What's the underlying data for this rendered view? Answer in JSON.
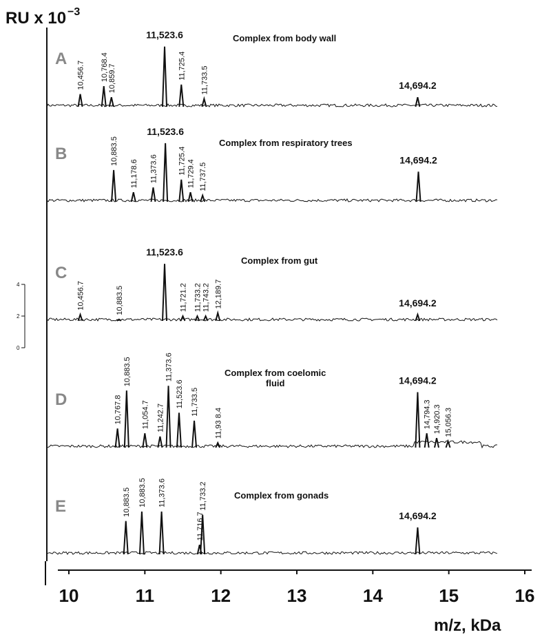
{
  "chart_data": {
    "type": "spectra",
    "y_label": "RU x 10",
    "y_label_exp": "−3",
    "x_label": "m/z, kDa",
    "xlim": [
      10,
      16
    ],
    "xticks": [
      10,
      11,
      12,
      13,
      14,
      15,
      16
    ],
    "scale_bar": {
      "ylim": [
        0,
        4
      ],
      "yticks": [
        0,
        2,
        4
      ]
    },
    "panels": [
      {
        "letter": "A",
        "title": [
          "Complex from body wall"
        ],
        "peaks": [
          {
            "x": 10.15,
            "height": 0.8,
            "label": "10,456.7"
          },
          {
            "x": 10.46,
            "height": 1.3,
            "label": "10,768.4"
          },
          {
            "x": 10.56,
            "height": 0.6,
            "label": "10,859.7"
          },
          {
            "x": 11.26,
            "height": 3.8,
            "label": "11,523.6",
            "horizontal": true
          },
          {
            "x": 11.48,
            "height": 1.4,
            "label": "11,725.4"
          },
          {
            "x": 11.78,
            "height": 0.5,
            "label": "11,733.5"
          },
          {
            "x": 14.59,
            "height": 0.6,
            "label": "14,694.2",
            "horizontal": true
          }
        ]
      },
      {
        "letter": "B",
        "title": [
          "Complex from respiratory trees"
        ],
        "peaks": [
          {
            "x": 10.59,
            "height": 2.0,
            "label": "10,883.5"
          },
          {
            "x": 10.85,
            "height": 0.6,
            "label": "11,178.6"
          },
          {
            "x": 11.11,
            "height": 0.9,
            "label": "11,373.6"
          },
          {
            "x": 11.27,
            "height": 3.7,
            "label": "11,523.6",
            "horizontal": true
          },
          {
            "x": 11.48,
            "height": 1.4,
            "label": "11,725.4"
          },
          {
            "x": 11.6,
            "height": 0.6,
            "label": "11,729.4"
          },
          {
            "x": 11.76,
            "height": 0.4,
            "label": "11,737.5"
          },
          {
            "x": 14.6,
            "height": 1.9,
            "label": "14,694.2",
            "horizontal": true
          }
        ]
      },
      {
        "letter": "C",
        "title": [
          "Complex from gut"
        ],
        "peaks": [
          {
            "x": 10.15,
            "height": 0.4,
            "label": "10,456.7"
          },
          {
            "x": 10.66,
            "height": 0.1,
            "label": "10,883.5"
          },
          {
            "x": 11.26,
            "height": 3.6,
            "label": "11,523.6",
            "horizontal": true
          },
          {
            "x": 11.5,
            "height": 0.3,
            "label": "11,721.2"
          },
          {
            "x": 11.69,
            "height": 0.3,
            "label": "11,733.2"
          },
          {
            "x": 11.8,
            "height": 0.3,
            "label": "11,743.2"
          },
          {
            "x": 11.96,
            "height": 0.5,
            "label": "12,189.7"
          },
          {
            "x": 14.59,
            "height": 0.4,
            "label": "14,694.2",
            "horizontal": true
          }
        ]
      },
      {
        "letter": "D",
        "title": [
          "Complex  from coelomic",
          "fluid"
        ],
        "peaks": [
          {
            "x": 10.64,
            "height": 1.2,
            "label": "10,767.8"
          },
          {
            "x": 10.76,
            "height": 3.6,
            "label": "10,883.5"
          },
          {
            "x": 11.0,
            "height": 0.9,
            "label": "11,054.7"
          },
          {
            "x": 11.2,
            "height": 0.7,
            "label": "11,242.7"
          },
          {
            "x": 11.31,
            "height": 3.9,
            "label": "11,373.6"
          },
          {
            "x": 11.45,
            "height": 2.2,
            "label": "11,523.6"
          },
          {
            "x": 11.65,
            "height": 1.7,
            "label": "11,733.5"
          },
          {
            "x": 11.96,
            "height": 0.3,
            "label": "11,93 8.4"
          },
          {
            "x": 14.59,
            "height": 3.5,
            "label": "14,694.2",
            "horizontal": true
          },
          {
            "x": 14.71,
            "height": 0.9,
            "label": "14,794.3"
          },
          {
            "x": 14.84,
            "height": 0.6,
            "label": "14,920.3"
          },
          {
            "x": 14.99,
            "height": 0.4,
            "label": "15,056.3"
          }
        ]
      },
      {
        "letter": "E",
        "title": [
          "Complex from gonads"
        ],
        "peaks": [
          {
            "x": 10.75,
            "height": 2.1,
            "label": "10,883.5"
          },
          {
            "x": 10.96,
            "height": 2.7,
            "label": "10,883.5"
          },
          {
            "x": 11.22,
            "height": 2.7,
            "label": "11,373.6"
          },
          {
            "x": 11.72,
            "height": 0.6,
            "label": "11,716.7"
          },
          {
            "x": 11.76,
            "height": 2.5,
            "label": "11,733.2"
          },
          {
            "x": 14.59,
            "height": 1.7,
            "label": "14,694.2",
            "horizontal": true
          }
        ]
      }
    ]
  }
}
